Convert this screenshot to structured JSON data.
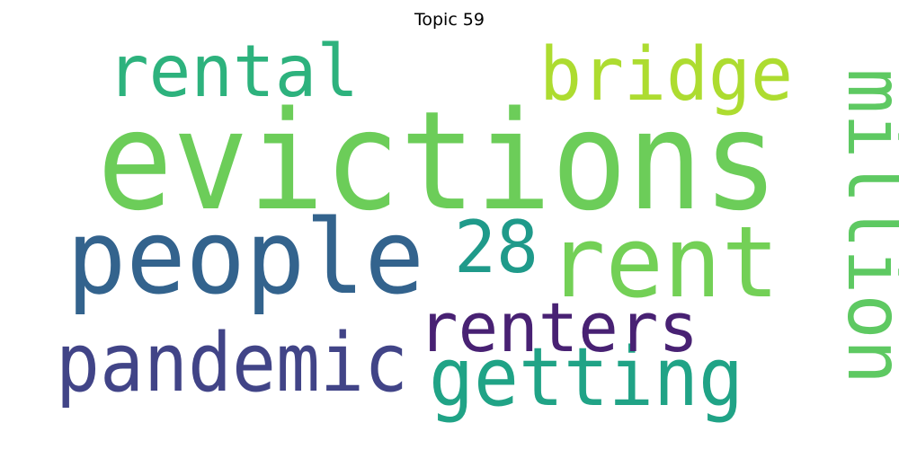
{
  "title": "Topic 59",
  "words": [
    {
      "text": "evictions",
      "color": "#6ccd59",
      "weight": 1.0
    },
    {
      "text": "people",
      "color": "#33638d",
      "weight": 0.72
    },
    {
      "text": "rent",
      "color": "#73d056",
      "weight": 0.68
    },
    {
      "text": "pandemic",
      "color": "#414487",
      "weight": 0.52
    },
    {
      "text": "getting",
      "color": "#20a386",
      "weight": 0.52
    },
    {
      "text": "million",
      "color": "#5ec962",
      "weight": 0.5
    },
    {
      "text": "rental",
      "color": "#2db27d",
      "weight": 0.46
    },
    {
      "text": "bridge",
      "color": "#addc30",
      "weight": 0.46
    },
    {
      "text": "28",
      "color": "#1f9a8a",
      "weight": 0.44
    },
    {
      "text": "renters",
      "color": "#482173",
      "weight": 0.44
    }
  ]
}
